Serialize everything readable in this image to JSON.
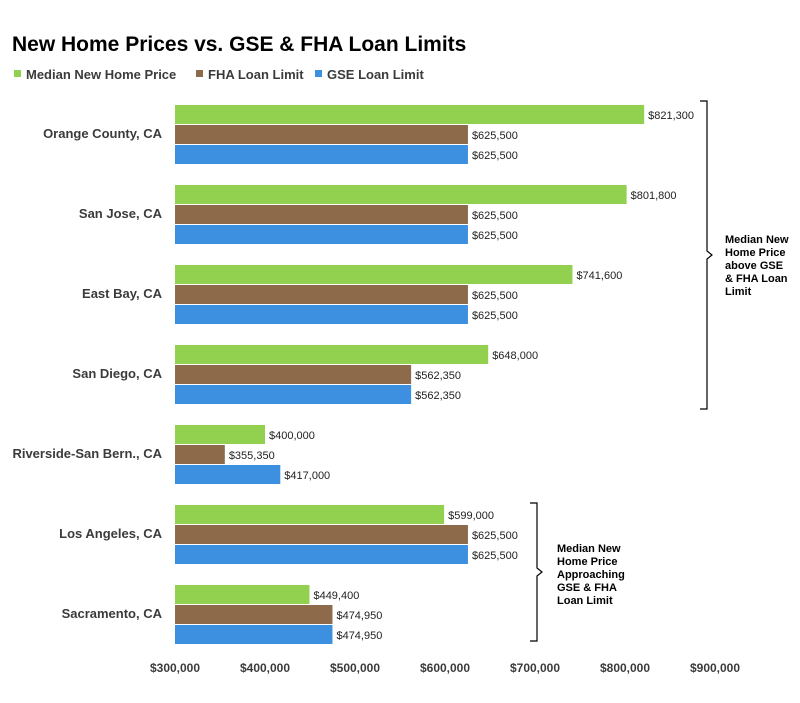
{
  "chart_data": {
    "type": "bar",
    "orientation": "horizontal",
    "title": "New Home Prices vs. GSE & FHA Loan Limits",
    "categories": [
      "Orange County, CA",
      "San Jose, CA",
      "East Bay, CA",
      "San Diego, CA",
      "Riverside-San Bern., CA",
      "Los Angeles, CA",
      "Sacramento, CA"
    ],
    "series": [
      {
        "name": "Median New Home Price",
        "color": "#92d050",
        "values": [
          821300,
          801800,
          741600,
          648000,
          400000,
          599000,
          449400
        ],
        "labels": [
          "$821,300",
          "$801,800",
          "$741,600",
          "$648,000",
          "$400,000",
          "$599,000",
          "$449,400"
        ]
      },
      {
        "name": "FHA Loan Limit",
        "color": "#8c6a4a",
        "values": [
          625500,
          625500,
          625500,
          562350,
          355350,
          625500,
          474950
        ],
        "labels": [
          "$625,500",
          "$625,500",
          "$625,500",
          "$562,350",
          "$355,350",
          "$625,500",
          "$474,950"
        ]
      },
      {
        "name": "GSE Loan Limit",
        "color": "#3d8fe0",
        "values": [
          625500,
          625500,
          625500,
          562350,
          417000,
          625500,
          474950
        ],
        "labels": [
          "$625,500",
          "$625,500",
          "$625,500",
          "$562,350",
          "$417,000",
          "$625,500",
          "$474,950"
        ]
      }
    ],
    "xlim": [
      300000,
      900000
    ],
    "xticks": [
      300000,
      400000,
      500000,
      600000,
      700000,
      800000,
      900000
    ],
    "xtick_labels": [
      "$300,000",
      "$400,000",
      "$500,000",
      "$600,000",
      "$700,000",
      "$800,000",
      "$900,000"
    ],
    "xlabel": "",
    "ylabel": "",
    "grid": false,
    "legend_position": "top-left",
    "annotations": [
      {
        "lines": [
          "Median New",
          "Home Price",
          "above GSE",
          "& FHA Loan",
          "Limit"
        ],
        "categories": [
          "Orange County, CA",
          "San Jose, CA",
          "East Bay, CA",
          "San Diego, CA"
        ]
      },
      {
        "lines": [
          "Median New",
          "Home Price",
          "Approaching",
          "GSE & FHA",
          "Loan Limit"
        ],
        "categories": [
          "Los Angeles, CA",
          "Sacramento, CA"
        ]
      }
    ]
  }
}
